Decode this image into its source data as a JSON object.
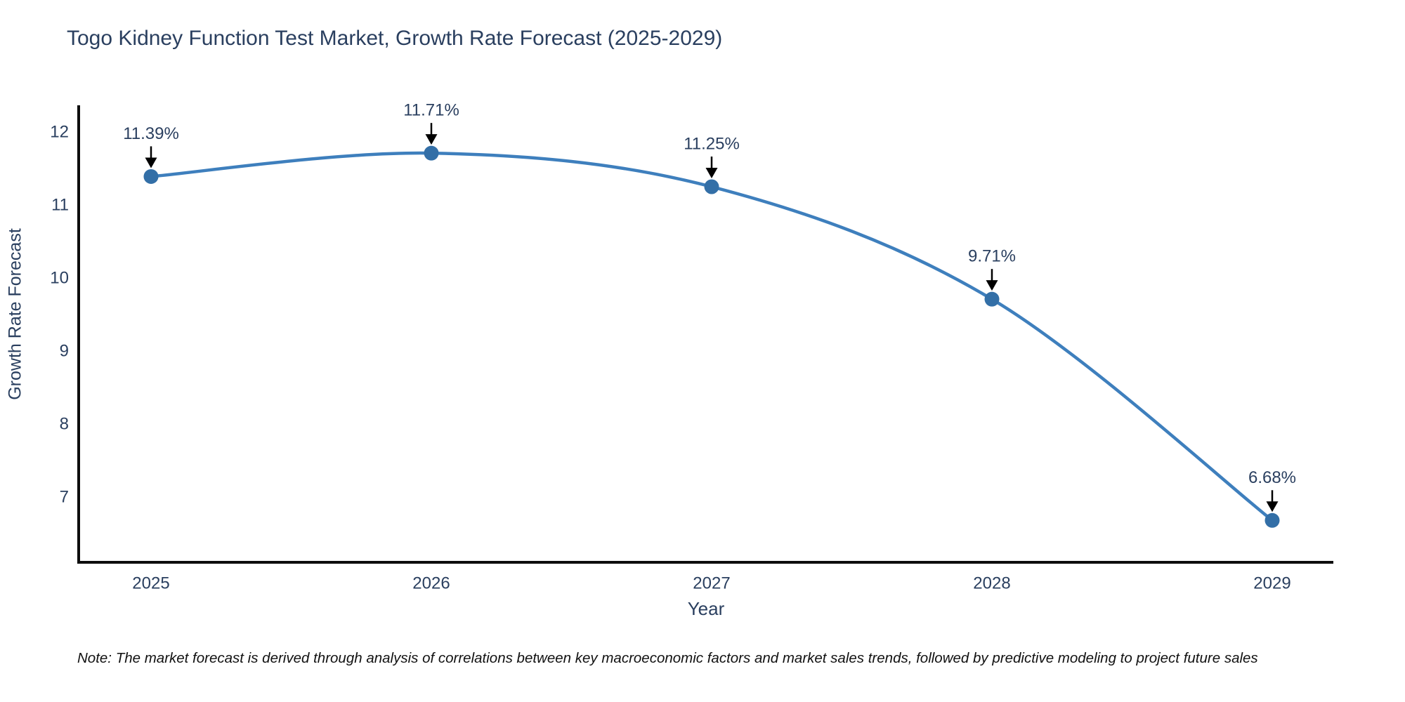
{
  "chart_data": {
    "type": "line",
    "line_shape": "spline",
    "title": "Togo Kidney Function Test Market, Growth Rate Forecast (2025-2029)",
    "xlabel": "Year",
    "ylabel": "Growth Rate Forecast",
    "categories": [
      "2025",
      "2026",
      "2027",
      "2028",
      "2029"
    ],
    "values": [
      11.39,
      11.71,
      11.25,
      9.71,
      6.68
    ],
    "point_labels": [
      "11.39%",
      "11.71%",
      "11.25%",
      "9.71%",
      "6.68%"
    ],
    "yticks": [
      7,
      8,
      9,
      10,
      11,
      12
    ],
    "ylim": [
      6.12,
      12.33
    ],
    "xlim": [
      2024.73,
      2029.22
    ],
    "grid": false,
    "legend": "none",
    "colors": {
      "line": "#3e7fbd",
      "marker": "#336fa7",
      "axis": "#0d0d0d",
      "annotation_arrow": "#000000",
      "text": "#2a3f5f",
      "background": "#ffffff"
    }
  },
  "footnote": "Note: The market forecast is derived through analysis of correlations between key macroeconomic factors and market sales trends, followed by predictive modeling to project future sales"
}
